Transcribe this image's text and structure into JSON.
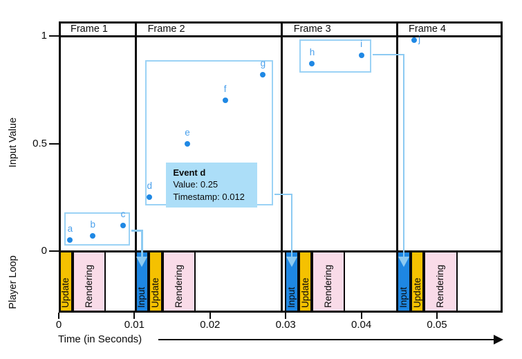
{
  "colors": {
    "ink": "#0a0a0a",
    "dot": "#1f88e4",
    "event_label": "#4aa0ec",
    "input_bar": "#1e87e3",
    "update_bar": "#f5c101",
    "rendering_bar": "#f9dbe8",
    "selection": "#9bd2f5",
    "arrow": "#8ccaf2",
    "tooltip_bg": "#acdef8"
  },
  "axes": {
    "y_title": "Input Value",
    "band_title": "Player Loop",
    "x_title": "Time (in Seconds)",
    "y_ticks": [
      {
        "v": 1,
        "label": "1"
      },
      {
        "v": 0.5,
        "label": "0.5"
      },
      {
        "v": 0,
        "label": "0"
      }
    ],
    "x_ticks": [
      {
        "t": 0,
        "label": "0"
      },
      {
        "t": 0.01,
        "label": "0.01"
      },
      {
        "t": 0.02,
        "label": "0.02"
      },
      {
        "t": 0.03,
        "label": "0.03"
      },
      {
        "t": 0.04,
        "label": "0.04"
      },
      {
        "t": 0.05,
        "label": "0.05"
      }
    ]
  },
  "chart_data": {
    "type": "scatter",
    "title": "",
    "xlabel": "Time (in Seconds)",
    "ylabel": "Input Value",
    "xlim": [
      0,
      0.0587
    ],
    "ylim": [
      0,
      1
    ],
    "frames": [
      {
        "label": "Frame 1",
        "start": 0,
        "end": 0.0102
      },
      {
        "label": "Frame 2",
        "start": 0.0102,
        "end": 0.0295
      },
      {
        "label": "Frame 3",
        "start": 0.0295,
        "end": 0.0447
      },
      {
        "label": "Frame 4",
        "start": 0.0447,
        "end": 0.0587
      }
    ],
    "events": [
      {
        "name": "a",
        "timestamp": 0.0015,
        "value": 0.05
      },
      {
        "name": "b",
        "timestamp": 0.0045,
        "value": 0.07
      },
      {
        "name": "c",
        "timestamp": 0.0085,
        "value": 0.12
      },
      {
        "name": "d",
        "timestamp": 0.012,
        "value": 0.25
      },
      {
        "name": "e",
        "timestamp": 0.017,
        "value": 0.5
      },
      {
        "name": "f",
        "timestamp": 0.022,
        "value": 0.7
      },
      {
        "name": "g",
        "timestamp": 0.027,
        "value": 0.82
      },
      {
        "name": "h",
        "timestamp": 0.0335,
        "value": 0.87
      },
      {
        "name": "i",
        "timestamp": 0.04,
        "value": 0.91
      },
      {
        "name": "j",
        "timestamp": 0.047,
        "value": 0.98,
        "label_side": "right"
      }
    ],
    "player_loop_phases": [
      {
        "frame": "Frame 1",
        "label": "Update",
        "kind": "update",
        "start": 0,
        "end": 0.0018
      },
      {
        "frame": "Frame 1",
        "label": "Rendering",
        "kind": "rendering",
        "start": 0.0018,
        "end": 0.0062
      },
      {
        "frame": "Frame 2",
        "label": "Input",
        "kind": "input",
        "start": 0.0101,
        "end": 0.0119
      },
      {
        "frame": "Frame 2",
        "label": "Update",
        "kind": "update",
        "start": 0.0119,
        "end": 0.0137
      },
      {
        "frame": "Frame 2",
        "label": "Rendering",
        "kind": "rendering",
        "start": 0.0137,
        "end": 0.0181
      },
      {
        "frame": "Frame 3",
        "label": "Input",
        "kind": "input",
        "start": 0.0299,
        "end": 0.0317
      },
      {
        "frame": "Frame 3",
        "label": "Update",
        "kind": "update",
        "start": 0.0317,
        "end": 0.0335
      },
      {
        "frame": "Frame 3",
        "label": "Rendering",
        "kind": "rendering",
        "start": 0.0335,
        "end": 0.0378
      },
      {
        "frame": "Frame 4",
        "label": "Input",
        "kind": "input",
        "start": 0.0447,
        "end": 0.0465
      },
      {
        "frame": "Frame 4",
        "label": "Update",
        "kind": "update",
        "start": 0.0465,
        "end": 0.0483
      },
      {
        "frame": "Frame 4",
        "label": "Rendering",
        "kind": "rendering",
        "start": 0.0483,
        "end": 0.0527
      }
    ],
    "event_groups": [
      {
        "events": [
          "a",
          "b",
          "c"
        ],
        "t0": 0.0007,
        "t1": 0.0094,
        "v0": 0.026,
        "v1": 0.18,
        "exit_v": 0.095,
        "target_t": 0.011
      },
      {
        "events": [
          "d",
          "e",
          "f",
          "g"
        ],
        "t0": 0.0114,
        "t1": 0.0283,
        "v0": 0.212,
        "v1": 0.888,
        "exit_v": 0.264,
        "target_t": 0.0308
      },
      {
        "events": [
          "h",
          "i"
        ],
        "t0": 0.0318,
        "t1": 0.0413,
        "v0": 0.83,
        "v1": 0.985,
        "exit_v": 0.913,
        "target_t": 0.0456
      }
    ],
    "tooltip": {
      "title": "Event d",
      "lines": [
        "Value: 0.25",
        "Timestamp: 0.012"
      ],
      "t": 0.0142,
      "v_top": 0.412
    }
  }
}
